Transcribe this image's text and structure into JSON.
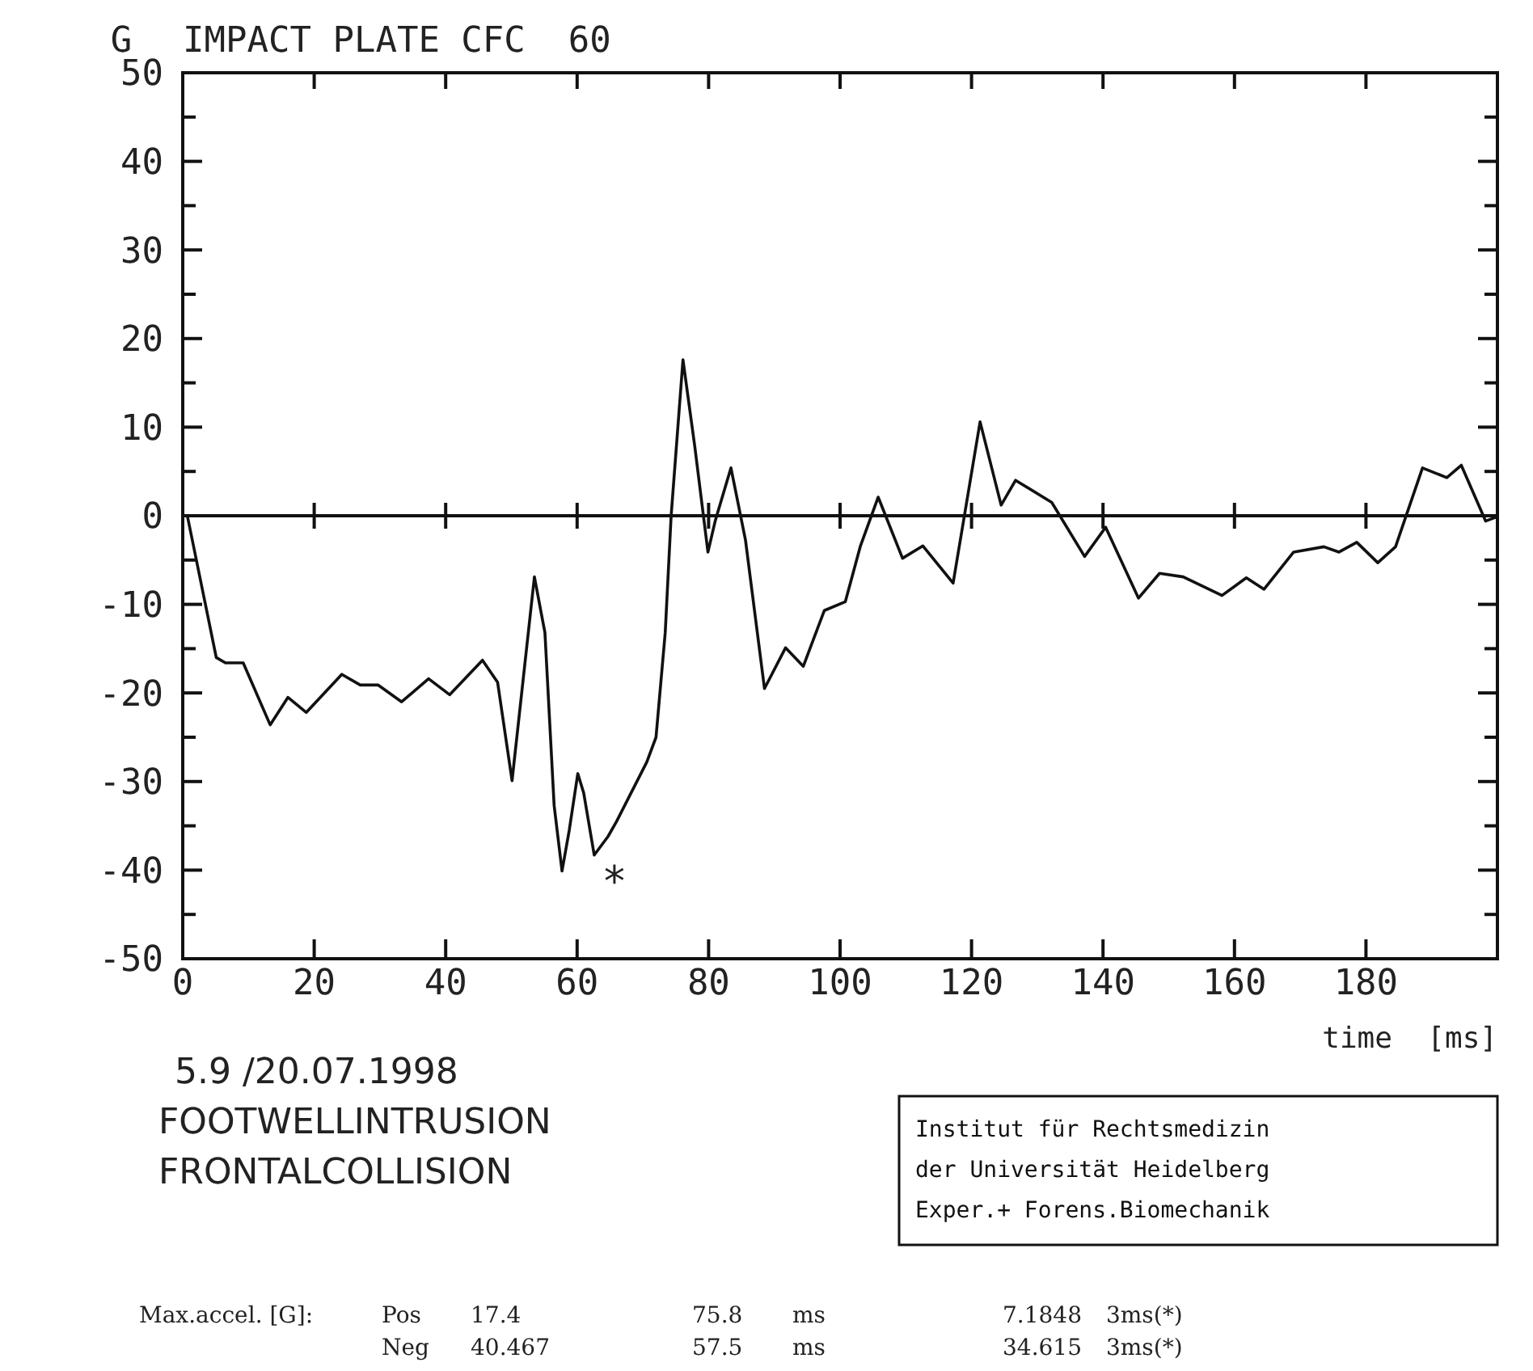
{
  "chart_data": {
    "type": "line",
    "title": "IMPACT PLATE CFC  60",
    "ylabel": "G",
    "xlabel": "time  [ms]",
    "xlim": [
      0,
      200
    ],
    "ylim": [
      -50,
      50
    ],
    "xticks": [
      0,
      20,
      40,
      60,
      80,
      100,
      120,
      140,
      160,
      180,
      {
        "value": 200,
        "label": null
      }
    ],
    "yticks": [
      -50,
      {
        "value": -45,
        "label": null
      },
      -40,
      {
        "value": -35,
        "label": null
      },
      -30,
      {
        "value": -25,
        "label": null
      },
      -20,
      {
        "value": -15,
        "label": null
      },
      -10,
      {
        "value": -5,
        "label": null
      },
      0,
      {
        "value": 5,
        "label": null
      },
      10,
      {
        "value": 15,
        "label": null
      },
      20,
      {
        "value": 25,
        "label": null
      },
      30,
      {
        "value": 35,
        "label": null
      },
      40,
      {
        "value": 45,
        "label": null
      },
      50
    ],
    "ref_lines": [
      {
        "axis": "y",
        "value": 0
      }
    ],
    "series": [
      {
        "color": "#111111",
        "x": [
          0,
          0.7,
          5.1,
          6.5,
          9.2,
          13.3,
          16,
          18.8,
          24.2,
          27,
          29.7,
          33.3,
          37.4,
          40.6,
          45.6,
          47.9,
          50.1,
          53.5,
          55.1,
          56.5,
          57.7,
          58.8,
          60.1,
          61,
          62.6,
          64.7,
          66,
          70.6,
          72,
          73.4,
          74.3,
          76.1,
          77.9,
          79.9,
          81,
          83.4,
          85.6,
          88.5,
          91.7,
          94.4,
          97.6,
          100.8,
          103.1,
          105.8,
          109.5,
          112.6,
          117.2,
          121.3,
          124.5,
          126.7,
          132.2,
          137.2,
          140.4,
          145.4,
          148.6,
          152.2,
          158.1,
          161.8,
          164.5,
          169,
          173.6,
          175.9,
          178.6,
          181.8,
          184.5,
          188.6,
          192.3,
          194.5,
          198.2,
          200
        ],
        "values": [
          0,
          0,
          -16,
          -16.6,
          -16.6,
          -23.6,
          -20.5,
          -22.2,
          -17.9,
          -19.1,
          -19.1,
          -21,
          -18.4,
          -20.2,
          -16.3,
          -18.8,
          -29.9,
          -6.9,
          -13.2,
          -32.7,
          -40.1,
          -35.5,
          -29.1,
          -31.3,
          -38.3,
          -36.2,
          -34.5,
          -27.8,
          -25,
          -13.2,
          0,
          17.6,
          7.8,
          -4.1,
          -0.6,
          5.4,
          -2.7,
          -19.5,
          -14.9,
          -17,
          -10.7,
          -9.7,
          -3.4,
          2.1,
          -4.8,
          -3.4,
          -7.6,
          10.6,
          1.2,
          4,
          1.5,
          -4.6,
          -1.3,
          -9.3,
          -6.5,
          -6.9,
          -9,
          -7,
          -8.3,
          -4.1,
          -3.5,
          -4.1,
          -3,
          -5.3,
          -3.5,
          5.4,
          4.3,
          5.7,
          -0.6,
          -0.1
        ]
      }
    ],
    "annotations": [
      "*",
      "5.9 /20.07.1998",
      "FOOTWELLINTRUSION",
      "FRONTALCOLLISION",
      "Institut für Rechtsmedizin",
      "der Universität Heidelberg",
      "Exper.+ Forens.Biomechanik",
      "Max.accel. [G]:",
      "Pos",
      "17.4",
      "75.8",
      "ms",
      "7.1848",
      "3ms(*)",
      "Neg",
      "40.467",
      "57.5",
      "ms",
      "34.615",
      "3ms(*)"
    ]
  }
}
